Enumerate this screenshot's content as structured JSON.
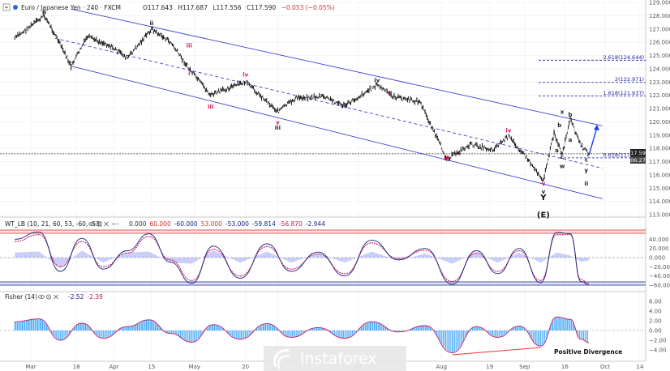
{
  "header": {
    "instrument": "Euro / Japanese Yen",
    "timeframe": "240",
    "source": "FXCM",
    "open": "O117.643",
    "high": "H117.687",
    "low": "L117.556",
    "close": "C117.590",
    "change": "−0.053 (−0.05%)"
  },
  "price_tag": {
    "value": "117.590",
    "countdown": "06:27"
  },
  "wt_panel": {
    "title": "WT_LB (10, 21, 60, 53, -60, -53)",
    "values": [
      "0.000",
      "60.000",
      "-60.000",
      "53.000",
      "-53.000",
      "-59.814",
      "-56.870",
      "-2.944"
    ],
    "value_colors": [
      "#333333",
      "#d32f2f",
      "#1a237e",
      "#d32f2f",
      "#1a237e",
      "#1a237e",
      "#c2185b",
      "#1a237e"
    ]
  },
  "fisher_panel": {
    "title": "Fisher (14)",
    "values": [
      "-2.52",
      "-2.39"
    ],
    "value_colors": [
      "#1a237e",
      "#c2185b"
    ]
  },
  "annotations": {
    "divergence": "Positive Divergence",
    "watermark": "instaforex"
  },
  "fib_levels": [
    {
      "label": "2.618(124.644)",
      "price": 124.644
    },
    {
      "label": "2(122.971)",
      "price": 122.971
    },
    {
      "label": "1.618(121.937)",
      "price": 121.937
    },
    {
      "label": "0.618(117.281)",
      "price": 117.281
    }
  ],
  "wave_labels": [
    {
      "text": "B",
      "date": "2020-03-06",
      "price": 128.1,
      "color": "#222222"
    },
    {
      "text": "i",
      "date": "2020-03-16",
      "price": 123.9,
      "color": "#222222"
    },
    {
      "text": "ii",
      "date": "2020-04-15",
      "price": 127.3,
      "color": "#222222"
    },
    {
      "text": "iii",
      "date": "2020-04-29",
      "price": 125.6,
      "color": "#d81b60"
    },
    {
      "text": "i",
      "date": "2020-04-29",
      "price": 123.5,
      "color": "#d81b60"
    },
    {
      "text": "iii",
      "date": "2020-05-07",
      "price": 121.0,
      "color": "#d81b60"
    },
    {
      "text": "iv",
      "date": "2020-05-20",
      "price": 123.4,
      "color": "#d81b60"
    },
    {
      "text": "v",
      "date": "2020-06-01",
      "price": 119.8,
      "color": "#d81b60"
    },
    {
      "text": "iii",
      "date": "2020-06-01",
      "price": 119.4,
      "color": "#222222"
    },
    {
      "text": "iv",
      "date": "2020-07-08",
      "price": 123.0,
      "color": "#222222"
    },
    {
      "text": "ii",
      "date": "2020-07-13",
      "price": 122.0,
      "color": "#d81b60"
    },
    {
      "text": "iii",
      "date": "2020-08-03",
      "price": 117.1,
      "color": "#d81b60"
    },
    {
      "text": "iv",
      "date": "2020-08-26",
      "price": 119.2,
      "color": "#d81b60"
    },
    {
      "text": "v",
      "date": "2020-09-08",
      "price": 115.2,
      "color": "#d81b60"
    },
    {
      "text": "v",
      "date": "2020-09-08",
      "price": 114.6,
      "color": "#222222"
    },
    {
      "text": "i",
      "date": "2020-09-12",
      "price": 119.1,
      "color": "#222222"
    },
    {
      "text": "a",
      "date": "2020-09-13",
      "price": 117.7,
      "color": "#222222"
    },
    {
      "text": "b",
      "date": "2020-09-14",
      "price": 119.6,
      "color": "#222222"
    },
    {
      "text": "c",
      "date": "2020-09-15",
      "price": 117.2,
      "color": "#222222"
    },
    {
      "text": "x",
      "date": "2020-09-15",
      "price": 120.6,
      "color": "#222222"
    },
    {
      "text": "w",
      "date": "2020-09-15",
      "price": 116.5,
      "color": "#222222"
    },
    {
      "text": "b",
      "date": "2020-09-18",
      "price": 120.4,
      "color": "#222222"
    },
    {
      "text": "a",
      "date": "2020-09-18",
      "price": 118.5,
      "color": "#222222"
    },
    {
      "text": "c",
      "date": "2020-09-24",
      "price": 117.0,
      "color": "#222222"
    },
    {
      "text": "y",
      "date": "2020-09-24",
      "price": 116.2,
      "color": "#222222"
    },
    {
      "text": "ii",
      "date": "2020-09-24",
      "price": 115.2,
      "color": "#222222"
    }
  ],
  "big_labels": [
    {
      "text": "Y",
      "date": "2020-09-08",
      "price": 114.1
    },
    {
      "text": "(E)",
      "date": "2020-09-08",
      "price": 112.8
    }
  ],
  "chart_data": [
    {
      "type": "line",
      "title": "Euro / Japanese Yen · 240 · FXCM",
      "y_axis": {
        "min": 113.0,
        "max": 129.0,
        "step": 1.0
      },
      "x_ticks": [
        "Mar",
        "18",
        "Apr",
        "15",
        "May",
        "20",
        "Jun",
        "Jul",
        "Aug",
        "19",
        "Sep",
        "16",
        "Oct",
        "14"
      ],
      "x_tick_dates": [
        "2020-03-01",
        "2020-03-18",
        "2020-04-01",
        "2020-04-15",
        "2020-05-01",
        "2020-05-20",
        "2020-06-01",
        "2020-07-01",
        "2020-08-01",
        "2020-08-19",
        "2020-09-01",
        "2020-09-16",
        "2020-10-01",
        "2020-10-14"
      ],
      "series": [
        {
          "name": "",
          "x": [
            "2020-02-24",
            "2020-03-06",
            "2020-03-10",
            "2020-03-16",
            "2020-03-22",
            "2020-03-30",
            "2020-04-06",
            "2020-04-15",
            "2020-04-22",
            "2020-04-29",
            "2020-05-07",
            "2020-05-13",
            "2020-05-20",
            "2020-06-01",
            "2020-06-08",
            "2020-06-18",
            "2020-06-26",
            "2020-07-08",
            "2020-07-14",
            "2020-07-24",
            "2020-08-03",
            "2020-08-12",
            "2020-08-20",
            "2020-08-26",
            "2020-09-01",
            "2020-09-08",
            "2020-09-12",
            "2020-09-15",
            "2020-09-18",
            "2020-09-22",
            "2020-09-25"
          ],
          "y": [
            126.3,
            128.0,
            126.6,
            124.2,
            126.4,
            125.8,
            124.8,
            127.0,
            126.0,
            124.0,
            122.0,
            122.5,
            123.0,
            120.8,
            121.8,
            121.9,
            121.2,
            122.8,
            121.9,
            121.5,
            117.2,
            118.3,
            117.9,
            118.9,
            117.5,
            115.6,
            119.2,
            117.5,
            120.2,
            118.2,
            117.59
          ]
        }
      ],
      "channel": {
        "upper": {
          "x": [
            "2020-03-16",
            "2020-09-30"
          ],
          "y": [
            128.5,
            119.7
          ]
        },
        "lower": {
          "x": [
            "2020-03-16",
            "2020-09-30"
          ],
          "y": [
            124.2,
            114.2
          ]
        },
        "mid": {
          "x": [
            "2020-03-10",
            "2020-09-30"
          ],
          "y": [
            126.3,
            116.5
          ]
        }
      },
      "projection": {
        "x": [
          "2020-09-25",
          "2020-09-28"
        ],
        "y": [
          117.5,
          119.6
        ]
      },
      "current_price": 117.59,
      "grid": true
    },
    {
      "type": "line",
      "title": "WT_LB (10, 21, 60, 53, -60, -53)",
      "y_axis": {
        "min": -60,
        "max": 60,
        "ticks": [
          60,
          40,
          20,
          0,
          -20,
          -40,
          -60
        ]
      },
      "levels": [
        60,
        53,
        0,
        -53,
        -60
      ],
      "series": [
        {
          "name": "",
          "x": [
            "2020-02-24",
            "2020-03-04",
            "2020-03-12",
            "2020-03-20",
            "2020-03-28",
            "2020-04-06",
            "2020-04-14",
            "2020-04-22",
            "2020-04-30",
            "2020-05-08",
            "2020-05-18",
            "2020-05-28",
            "2020-06-06",
            "2020-06-16",
            "2020-06-26",
            "2020-07-06",
            "2020-07-16",
            "2020-07-26",
            "2020-08-05",
            "2020-08-14",
            "2020-08-22",
            "2020-08-30",
            "2020-09-07",
            "2020-09-13",
            "2020-09-18",
            "2020-09-22",
            "2020-09-25"
          ],
          "y": [
            40,
            56,
            -30,
            42,
            -25,
            15,
            52,
            -10,
            -56,
            25,
            -45,
            30,
            -30,
            12,
            -40,
            38,
            -5,
            20,
            -58,
            15,
            -35,
            20,
            -55,
            55,
            52,
            -52,
            -59.814
          ]
        },
        {
          "name": "",
          "x": [
            "2020-02-24",
            "2020-03-04",
            "2020-03-12",
            "2020-03-20",
            "2020-03-28",
            "2020-04-06",
            "2020-04-14",
            "2020-04-22",
            "2020-04-30",
            "2020-05-08",
            "2020-05-18",
            "2020-05-28",
            "2020-06-06",
            "2020-06-16",
            "2020-06-26",
            "2020-07-06",
            "2020-07-16",
            "2020-07-26",
            "2020-08-05",
            "2020-08-14",
            "2020-08-22",
            "2020-08-30",
            "2020-09-07",
            "2020-09-13",
            "2020-09-18",
            "2020-09-22",
            "2020-09-25"
          ],
          "y": [
            35,
            50,
            -20,
            35,
            -20,
            10,
            46,
            -5,
            -50,
            18,
            -40,
            24,
            -25,
            8,
            -35,
            32,
            -2,
            16,
            -52,
            10,
            -30,
            15,
            -50,
            50,
            50,
            -48,
            -56.87
          ]
        }
      ]
    },
    {
      "type": "bar",
      "title": "Fisher (14)",
      "y_axis": {
        "min": -6,
        "max": 6,
        "ticks": [
          6,
          4,
          2,
          0,
          -2,
          -4
        ]
      },
      "series": [
        {
          "name": "",
          "x": [
            "2020-02-24",
            "2020-03-04",
            "2020-03-12",
            "2020-03-20",
            "2020-03-28",
            "2020-04-06",
            "2020-04-14",
            "2020-04-22",
            "2020-04-30",
            "2020-05-08",
            "2020-05-18",
            "2020-05-28",
            "2020-06-06",
            "2020-06-16",
            "2020-06-26",
            "2020-07-06",
            "2020-07-16",
            "2020-07-26",
            "2020-08-05",
            "2020-08-14",
            "2020-08-22",
            "2020-08-30",
            "2020-09-07",
            "2020-09-13",
            "2020-09-18",
            "2020-09-22",
            "2020-09-25"
          ],
          "y": [
            1.8,
            2.4,
            -2.0,
            1.5,
            -1.6,
            0.8,
            2.2,
            -0.6,
            -2.4,
            1.2,
            -1.8,
            1.4,
            -1.4,
            0.6,
            -1.6,
            1.8,
            -0.3,
            1.0,
            -4.6,
            0.8,
            -1.4,
            0.9,
            -3.2,
            2.8,
            2.3,
            -1.8,
            -2.52
          ]
        }
      ],
      "divergence": {
        "x": [
          "2020-08-05",
          "2020-09-07"
        ],
        "y": [
          -5.0,
          -3.5
        ]
      }
    }
  ]
}
